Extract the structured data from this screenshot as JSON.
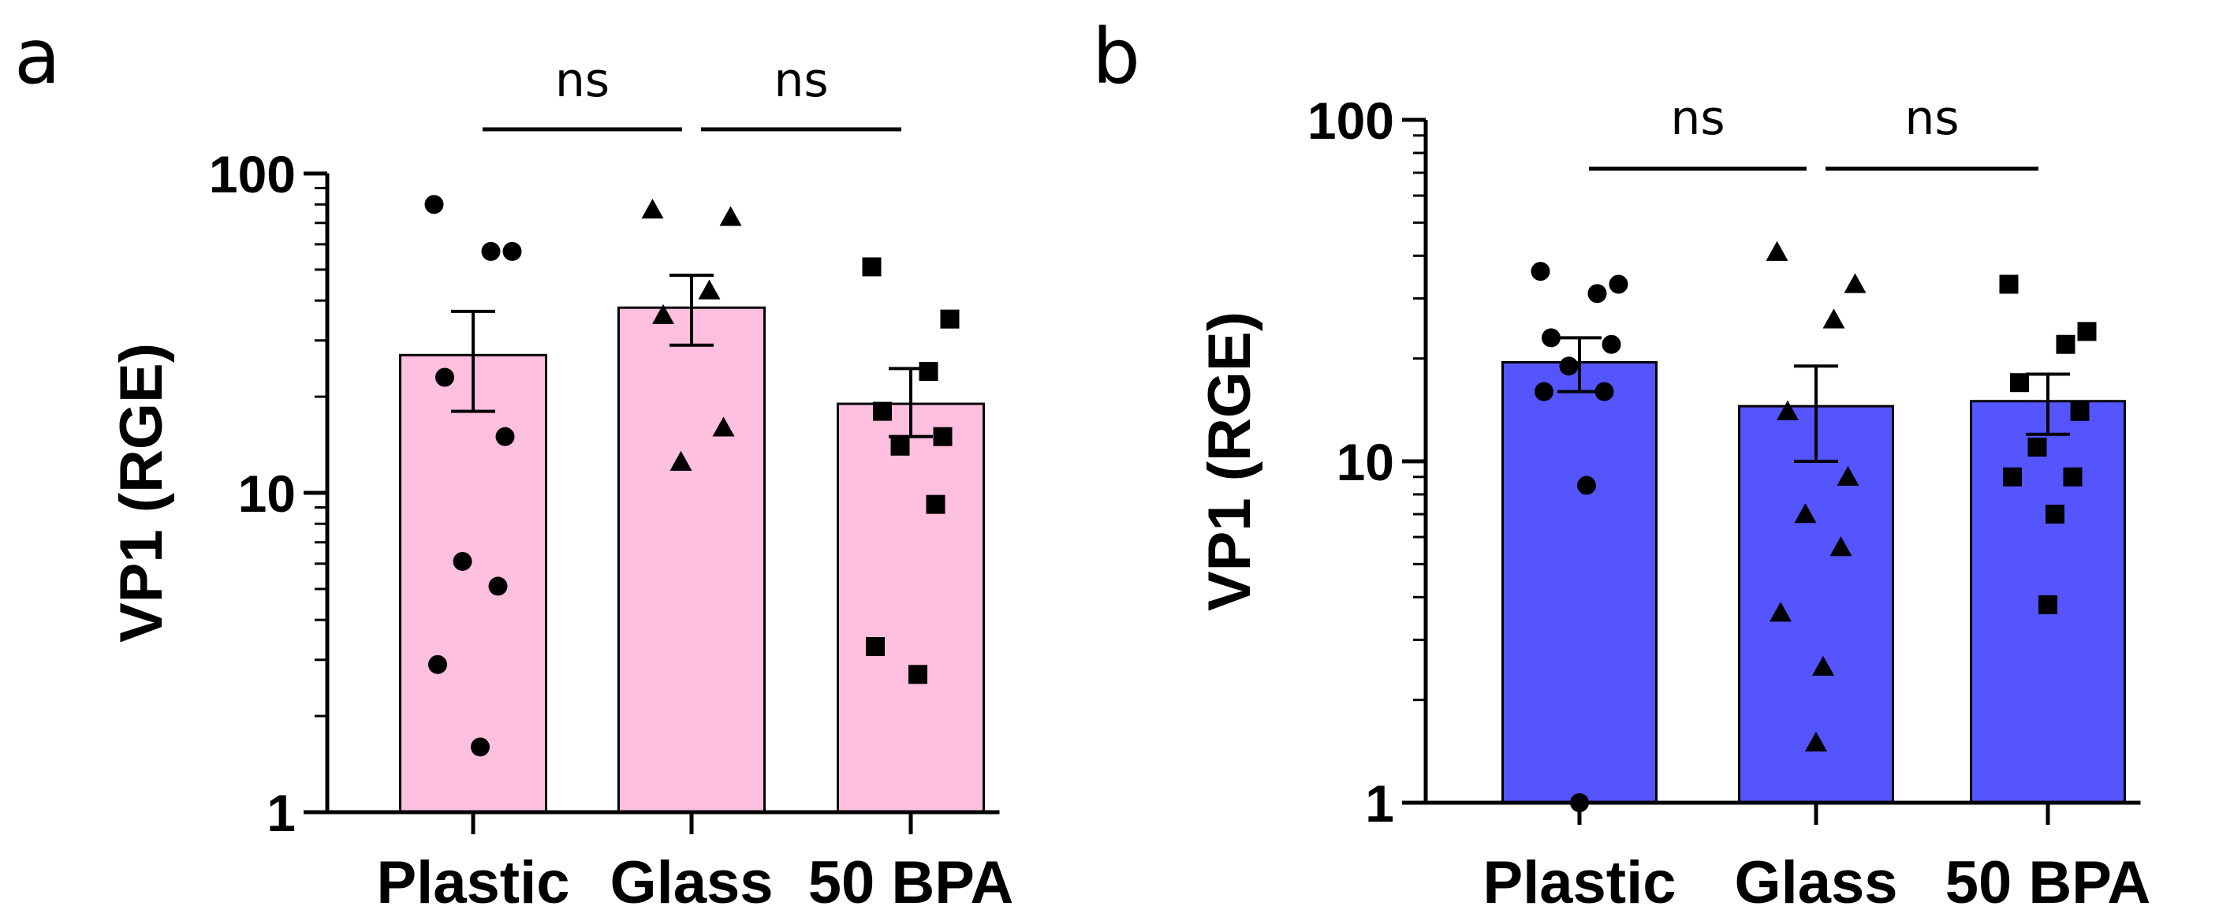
{
  "chart_data": [
    {
      "panel": "a",
      "type": "bar",
      "scale": "log",
      "ylabel": "VP1 (RGE)",
      "ylim": [
        1,
        100
      ],
      "yticks": [
        1,
        10,
        100
      ],
      "ytick_labels": [
        "1",
        "10",
        "100"
      ],
      "categories": [
        "Plastic",
        "Glass",
        "50 BPA"
      ],
      "bar_color": "#FFBFDF",
      "means": [
        27,
        38,
        19
      ],
      "sem_upper": [
        37,
        48,
        24.5
      ],
      "sem_lower": [
        18,
        29,
        15
      ],
      "points": [
        [
          80,
          57,
          57,
          23,
          15,
          6.1,
          5.1,
          2.9,
          1.6
        ],
        [
          77,
          73,
          43,
          36,
          16,
          12.5
        ],
        [
          51,
          35,
          24,
          18,
          15,
          14,
          9.2,
          3.3,
          2.7
        ]
      ],
      "markers": [
        "circle",
        "triangle",
        "square"
      ],
      "comparisons": [
        {
          "from": "Plastic",
          "to": "Glass",
          "label": "ns"
        },
        {
          "from": "Glass",
          "to": "50 BPA",
          "label": "ns"
        }
      ]
    },
    {
      "panel": "b",
      "type": "bar",
      "scale": "log",
      "ylabel": "VP1 (RGE)",
      "ylim": [
        1,
        100
      ],
      "yticks": [
        1,
        10,
        100
      ],
      "ytick_labels": [
        "1",
        "10",
        "100"
      ],
      "categories": [
        "Plastic",
        "Glass",
        "50 BPA"
      ],
      "bar_color": "#5555FF",
      "means": [
        19.5,
        14.5,
        15
      ],
      "sem_upper": [
        23,
        19,
        18
      ],
      "sem_lower": [
        16,
        10,
        12
      ],
      "points": [
        [
          36,
          33,
          31,
          23,
          22,
          19,
          16,
          16,
          8.5,
          1
        ],
        [
          41,
          33,
          26,
          14,
          9,
          7,
          5.6,
          3.6,
          2.5,
          1.5
        ],
        [
          33,
          24,
          22,
          17,
          14,
          11,
          9,
          9,
          7,
          3.8
        ]
      ],
      "markers": [
        "circle",
        "triangle",
        "square"
      ],
      "comparisons": [
        {
          "from": "Plastic",
          "to": "Glass",
          "label": "ns"
        },
        {
          "from": "Glass",
          "to": "50 BPA",
          "label": "ns"
        }
      ]
    }
  ]
}
